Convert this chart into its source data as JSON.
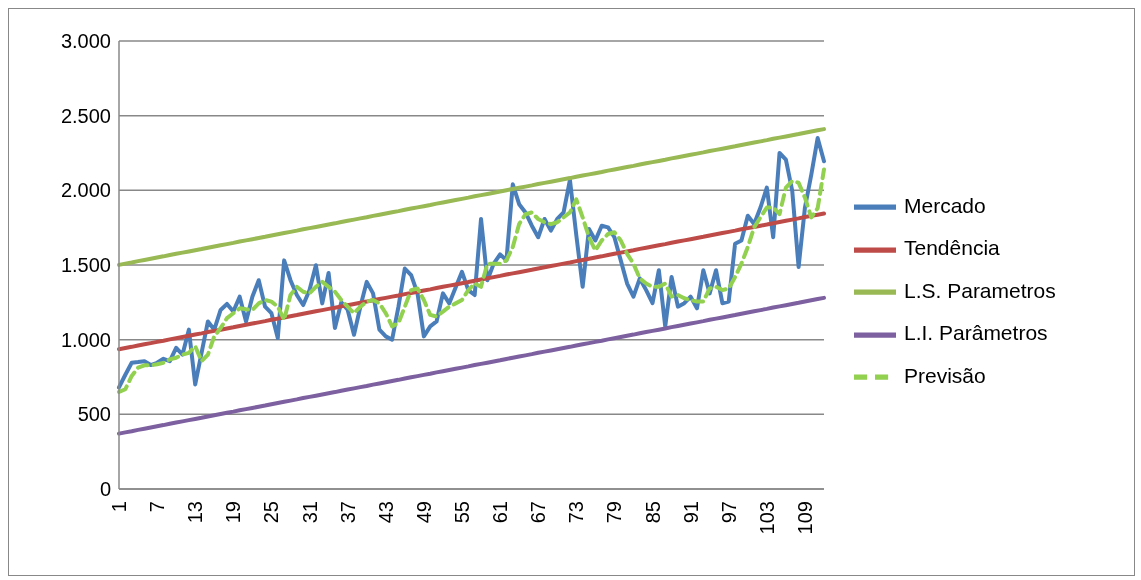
{
  "chart_data": {
    "type": "line",
    "categories": [
      "1",
      null,
      null,
      null,
      null,
      null,
      "7",
      null,
      null,
      null,
      null,
      null,
      "13",
      null,
      null,
      null,
      null,
      null,
      "19",
      null,
      null,
      null,
      null,
      null,
      "25",
      null,
      null,
      null,
      null,
      null,
      "31",
      null,
      null,
      null,
      null,
      null,
      "37",
      null,
      null,
      null,
      null,
      null,
      "43",
      null,
      null,
      null,
      null,
      null,
      "49",
      null,
      null,
      null,
      null,
      null,
      "55",
      null,
      null,
      null,
      null,
      null,
      "61",
      null,
      null,
      null,
      null,
      null,
      "67",
      null,
      null,
      null,
      null,
      null,
      "73",
      null,
      null,
      null,
      null,
      null,
      "79",
      null,
      null,
      null,
      null,
      null,
      "85",
      null,
      null,
      null,
      null,
      null,
      "91",
      null,
      null,
      null,
      null,
      null,
      "97",
      null,
      null,
      null,
      null,
      null,
      "103",
      null,
      null,
      null,
      null,
      null,
      "109",
      null,
      null,
      null
    ],
    "series": [
      {
        "name": "Mercado",
        "color": "#4a7ebb",
        "values": [
          680,
          765,
          845,
          850,
          856,
          830,
          845,
          872,
          856,
          945,
          900,
          1067,
          700,
          912,
          1122,
          1067,
          1199,
          1239,
          1188,
          1288,
          1122,
          1288,
          1398,
          1221,
          1177,
          1011,
          1531,
          1398,
          1299,
          1232,
          1332,
          1498,
          1243,
          1447,
          1078,
          1250,
          1200,
          1033,
          1220,
          1387,
          1310,
          1067,
          1022,
          1000,
          1221,
          1476,
          1432,
          1310,
          1022,
          1089,
          1122,
          1310,
          1243,
          1350,
          1454,
          1332,
          1299,
          1808,
          1398,
          1509,
          1571,
          1531,
          2040,
          1907,
          1852,
          1763,
          1686,
          1808,
          1730,
          1808,
          1852,
          2070,
          1700,
          1354,
          1741,
          1664,
          1763,
          1752,
          1686,
          1531,
          1376,
          1288,
          1410,
          1332,
          1244,
          1465,
          1089,
          1420,
          1221,
          1244,
          1288,
          1210,
          1465,
          1310,
          1465,
          1244,
          1255,
          1642,
          1664,
          1830,
          1774,
          1885,
          2018,
          1686,
          2250,
          2206,
          1996,
          1487,
          1885,
          2106,
          2350,
          2195
        ]
      },
      {
        "name": "Tendência",
        "color": "#be4b48",
        "values": [
          936,
          944,
          952,
          961,
          969,
          977,
          985,
          993,
          1002,
          1010,
          1018,
          1026,
          1034,
          1042,
          1051,
          1059,
          1067,
          1075,
          1083,
          1092,
          1100,
          1108,
          1116,
          1124,
          1133,
          1141,
          1149,
          1157,
          1165,
          1174,
          1182,
          1190,
          1198,
          1206,
          1214,
          1223,
          1231,
          1239,
          1247,
          1255,
          1264,
          1272,
          1280,
          1288,
          1296,
          1305,
          1313,
          1321,
          1329,
          1337,
          1346,
          1354,
          1362,
          1370,
          1378,
          1386,
          1395,
          1403,
          1411,
          1419,
          1427,
          1436,
          1444,
          1452,
          1460,
          1468,
          1477,
          1485,
          1493,
          1501,
          1509,
          1517,
          1526,
          1534,
          1542,
          1550,
          1558,
          1567,
          1575,
          1583,
          1591,
          1599,
          1608,
          1616,
          1624,
          1632,
          1640,
          1649,
          1657,
          1665,
          1673,
          1681,
          1689,
          1698,
          1706,
          1714,
          1722,
          1730,
          1739,
          1747,
          1755,
          1763,
          1771,
          1780,
          1788,
          1796,
          1804,
          1812,
          1821,
          1829,
          1837,
          1845
        ]
      },
      {
        "name": "L.S. Parametros",
        "color": "#98b954",
        "values": [
          1501,
          1509,
          1517,
          1526,
          1534,
          1542,
          1550,
          1558,
          1567,
          1575,
          1583,
          1591,
          1599,
          1607,
          1616,
          1624,
          1632,
          1640,
          1648,
          1657,
          1665,
          1673,
          1681,
          1689,
          1698,
          1706,
          1714,
          1722,
          1730,
          1739,
          1747,
          1755,
          1763,
          1771,
          1779,
          1788,
          1796,
          1804,
          1812,
          1820,
          1829,
          1837,
          1845,
          1853,
          1861,
          1870,
          1878,
          1886,
          1894,
          1902,
          1911,
          1919,
          1927,
          1935,
          1943,
          1951,
          1960,
          1968,
          1976,
          1984,
          1992,
          2001,
          2009,
          2017,
          2025,
          2033,
          2042,
          2050,
          2058,
          2066,
          2074,
          2082,
          2091,
          2099,
          2107,
          2115,
          2123,
          2132,
          2140,
          2148,
          2156,
          2164,
          2173,
          2181,
          2189,
          2197,
          2205,
          2214,
          2222,
          2230,
          2238,
          2246,
          2254,
          2263,
          2271,
          2279,
          2287,
          2295,
          2304,
          2312,
          2320,
          2328,
          2336,
          2345,
          2353,
          2361,
          2369,
          2377,
          2386,
          2394,
          2402,
          2410
        ]
      },
      {
        "name": "L.I. Parâmetros",
        "color": "#7d60a0",
        "values": [
          371,
          379,
          387,
          396,
          404,
          412,
          420,
          428,
          437,
          445,
          453,
          461,
          469,
          477,
          486,
          494,
          502,
          510,
          518,
          527,
          535,
          543,
          551,
          559,
          568,
          576,
          584,
          592,
          600,
          609,
          617,
          625,
          633,
          641,
          649,
          658,
          666,
          674,
          682,
          690,
          699,
          707,
          715,
          723,
          731,
          740,
          748,
          756,
          764,
          772,
          781,
          789,
          797,
          805,
          813,
          821,
          830,
          838,
          846,
          854,
          862,
          871,
          879,
          887,
          895,
          903,
          912,
          920,
          928,
          936,
          944,
          952,
          961,
          969,
          977,
          985,
          993,
          1002,
          1010,
          1018,
          1026,
          1034,
          1043,
          1051,
          1059,
          1067,
          1075,
          1084,
          1092,
          1100,
          1108,
          1116,
          1124,
          1133,
          1141,
          1149,
          1157,
          1165,
          1174,
          1182,
          1190,
          1198,
          1206,
          1215,
          1223,
          1231,
          1239,
          1247,
          1256,
          1264,
          1272,
          1280
        ]
      },
      {
        "name": "Previsão",
        "color": "#92d050",
        "line_style": "dashed",
        "values": [
          650,
          668,
          757,
          812,
          828,
          828,
          835,
          845,
          868,
          879,
          900,
          912,
          956,
          856,
          900,
          1022,
          1078,
          1144,
          1177,
          1210,
          1204,
          1199,
          1243,
          1266,
          1255,
          1221,
          1133,
          1299,
          1354,
          1321,
          1310,
          1354,
          1387,
          1354,
          1321,
          1266,
          1221,
          1177,
          1221,
          1255,
          1266,
          1243,
          1177,
          1089,
          1111,
          1221,
          1332,
          1343,
          1266,
          1166,
          1155,
          1188,
          1221,
          1243,
          1266,
          1332,
          1376,
          1354,
          1509,
          1509,
          1509,
          1531,
          1620,
          1774,
          1840,
          1852,
          1808,
          1786,
          1774,
          1786,
          1819,
          1852,
          1940,
          1819,
          1686,
          1597,
          1664,
          1708,
          1719,
          1664,
          1575,
          1509,
          1410,
          1376,
          1354,
          1354,
          1376,
          1288,
          1299,
          1277,
          1266,
          1255,
          1255,
          1343,
          1354,
          1332,
          1343,
          1420,
          1509,
          1620,
          1752,
          1819,
          1885,
          1885,
          1841,
          2018,
          2062,
          2051,
          1951,
          1819,
          1880,
          2140
        ]
      }
    ],
    "ylim": [
      0,
      3000
    ],
    "yticks": [
      {
        "value": 0,
        "label": "0"
      },
      {
        "value": 500,
        "label": "500"
      },
      {
        "value": 1000,
        "label": "1.000"
      },
      {
        "value": 1500,
        "label": "1.500"
      },
      {
        "value": 2000,
        "label": "2.000"
      },
      {
        "value": 2500,
        "label": "2.500"
      },
      {
        "value": 3000,
        "label": "3.000"
      }
    ],
    "grid": "y",
    "legend": "right"
  }
}
